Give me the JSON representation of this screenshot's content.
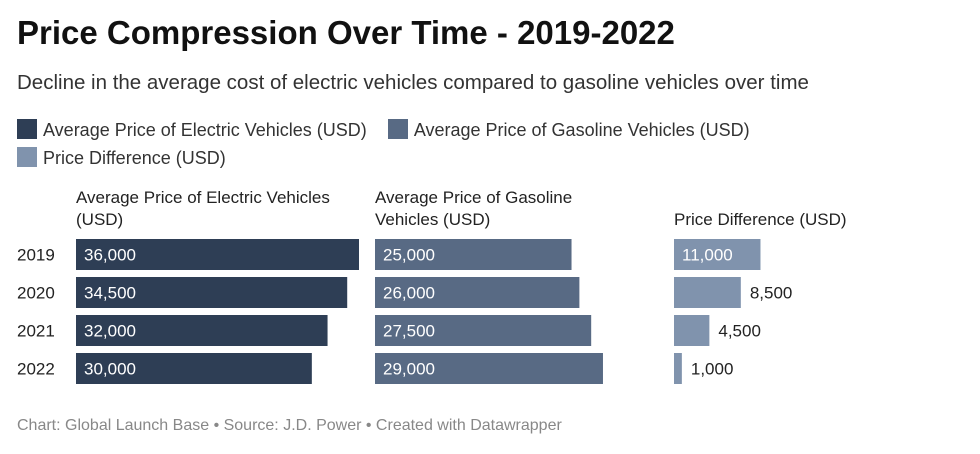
{
  "title": "Price Compression Over Time - 2019-2022",
  "subtitle": "Decline in the average cost of electric vehicles compared to gasoline vehicles over time",
  "footer": "Chart: Global Launch Base • Source: J.D. Power • Created with Datawrapper",
  "colors": {
    "electric": "#2e3e55",
    "gasoline": "#586a84",
    "difference": "#8093ad",
    "label_inside": "#ffffff",
    "label_outside": "#222222"
  },
  "chart_data": {
    "type": "bar",
    "orientation": "horizontal",
    "layout": "split-bars",
    "categories": [
      "2019",
      "2020",
      "2021",
      "2022"
    ],
    "series": [
      {
        "name": "Average Price of Electric Vehicles (USD)",
        "header": [
          "Average Price of Electric Vehicles",
          "(USD)"
        ],
        "values": [
          36000,
          34500,
          32000,
          30000
        ],
        "labels": [
          "36,000",
          "34,500",
          "32,000",
          "30,000"
        ]
      },
      {
        "name": "Average Price of Gasoline Vehicles (USD)",
        "header": [
          "Average Price of Gasoline",
          "Vehicles (USD)"
        ],
        "values": [
          25000,
          26000,
          27500,
          29000
        ],
        "labels": [
          "25,000",
          "26,000",
          "27,500",
          "29,000"
        ]
      },
      {
        "name": "Price Difference (USD)",
        "header": [
          "Price Difference (USD)"
        ],
        "values": [
          11000,
          8500,
          4500,
          1000
        ],
        "labels": [
          "11,000",
          "8,500",
          "4,500",
          "1,000"
        ]
      }
    ],
    "xlim": [
      0,
      36000
    ],
    "grid": false,
    "legend": "top-left"
  }
}
